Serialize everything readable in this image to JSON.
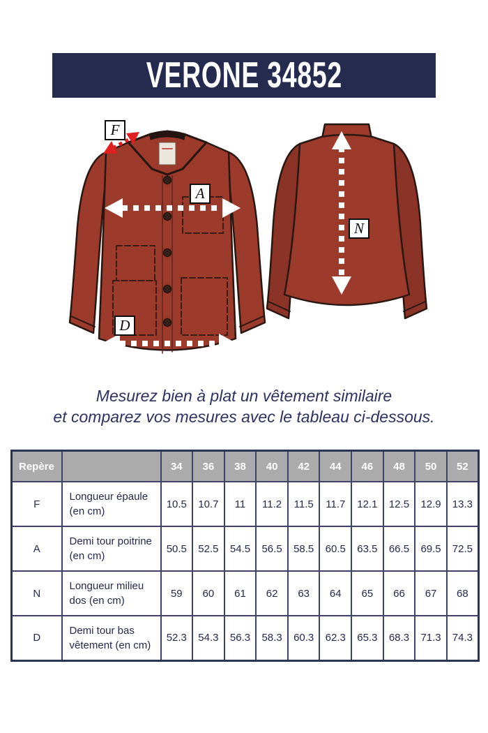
{
  "header": {
    "title": "VERONE 34852"
  },
  "diagram": {
    "labels": {
      "F": "F",
      "A": "A",
      "N": "N",
      "D": "D"
    }
  },
  "instruction": {
    "line1": "Mesurez bien à plat un vêtement similaire",
    "line2": "et comparez vos mesures avec le tableau ci-dessous."
  },
  "size_table": {
    "corner_header": "Repère",
    "description_header": "",
    "sizes": [
      "34",
      "36",
      "38",
      "40",
      "42",
      "44",
      "46",
      "48",
      "50",
      "52"
    ],
    "rows": [
      {
        "code": "F",
        "label": "Longueur épaule (en cm)",
        "values": [
          "10.5",
          "10.7",
          "11",
          "11.2",
          "11.5",
          "11.7",
          "12.1",
          "12.5",
          "12.9",
          "13.3"
        ]
      },
      {
        "code": "A",
        "label": "Demi tour poitrine (en cm)",
        "values": [
          "50.5",
          "52.5",
          "54.5",
          "56.5",
          "58.5",
          "60.5",
          "63.5",
          "66.5",
          "69.5",
          "72.5"
        ]
      },
      {
        "code": "N",
        "label": "Longueur milieu dos (en cm)",
        "values": [
          "59",
          "60",
          "61",
          "62",
          "63",
          "64",
          "65",
          "66",
          "67",
          "68"
        ]
      },
      {
        "code": "D",
        "label": "Demi tour bas vêtement (en cm)",
        "values": [
          "52.3",
          "54.3",
          "56.3",
          "58.3",
          "60.3",
          "62.3",
          "65.3",
          "68.3",
          "71.3",
          "74.3"
        ]
      }
    ]
  },
  "colors": {
    "band_navy": "#242b4e",
    "text_navy": "#2b3160",
    "table_border_navy": "#3e4468",
    "header_cell_gray": "#ababab",
    "jacket_red": "#9c3a2b",
    "jacket_sleeve_dark": "#8a3326",
    "arrow_red": "#e01f1f",
    "arrow_white": "#ffffff"
  }
}
